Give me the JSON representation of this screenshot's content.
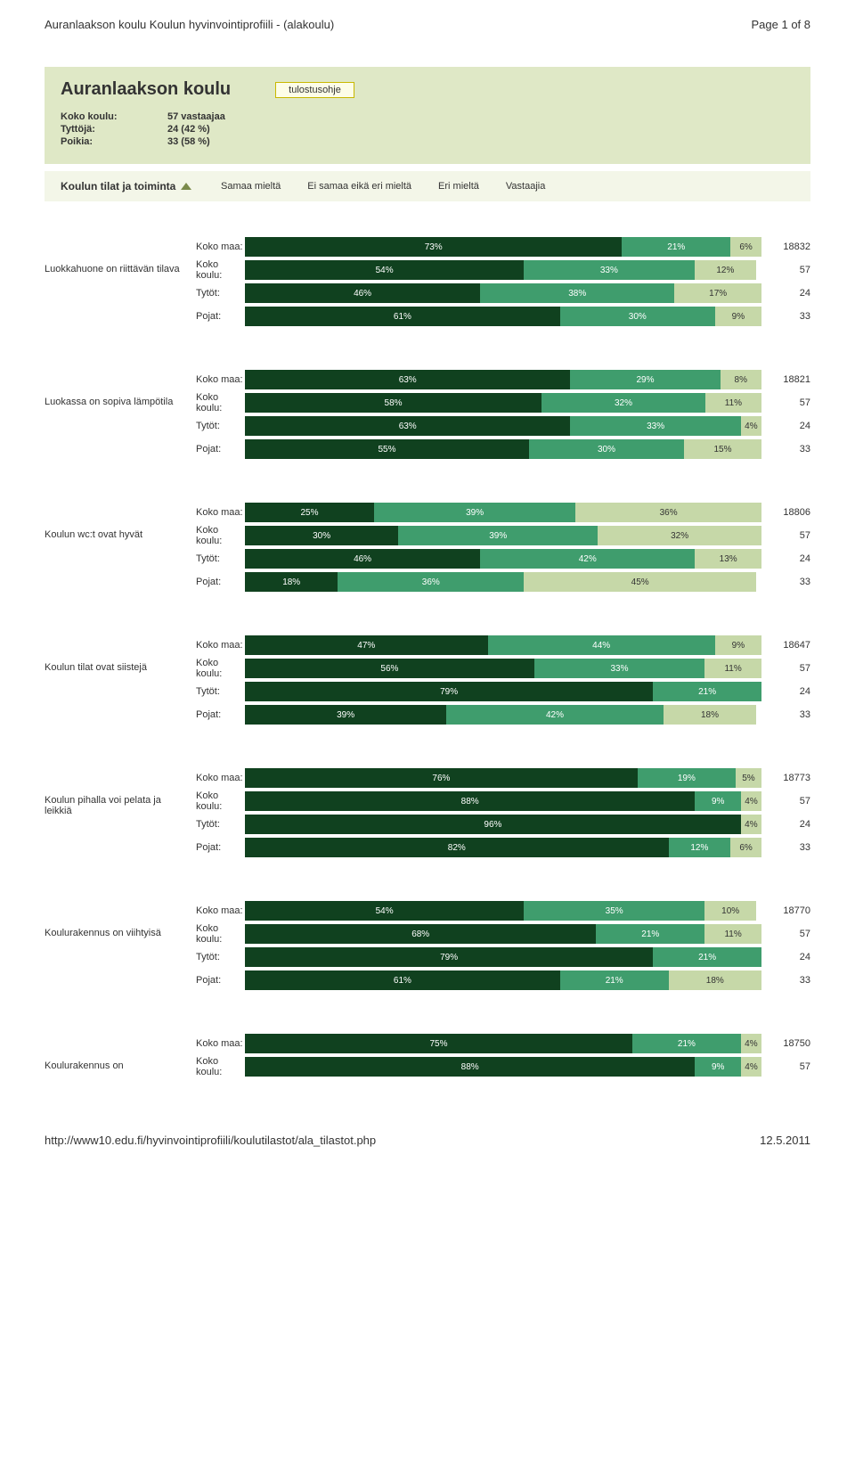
{
  "page_header_left": "Auranlaakson koulu Koulun hyvinvointiprofiili - (alakoulu)",
  "page_header_right": "Page 1 of 8",
  "footer_left": "http://www10.edu.fi/hyvinvointiprofiili/koulutilastot/ala_tilastot.php",
  "footer_right": "12.5.2011",
  "title": "Auranlaakson koulu",
  "tulostus_label": "tulostusohje",
  "stats": [
    {
      "k": "Koko koulu:",
      "v": "57 vastaajaa"
    },
    {
      "k": "Tyttöjä:",
      "v": "24 (42 %)"
    },
    {
      "k": "Poikia:",
      "v": "33 (58 %)"
    }
  ],
  "section_title": "Koulun tilat ja toiminta",
  "legend": [
    "Samaa mieltä",
    "Ei samaa eikä eri mieltä",
    "Eri mieltä",
    "Vastaajia"
  ],
  "colors": {
    "seg1": "#10411f",
    "seg2": "#3f9d6d",
    "seg3": "#c6d8a8",
    "seg3_text": "#333333"
  },
  "row_labels": [
    "Koko maa:",
    "Koko koulu:",
    "Tytöt:",
    "Pojat:"
  ],
  "questions": [
    {
      "label": "Luokkahuone on riittävän tilava",
      "rows": [
        {
          "v": [
            73,
            21,
            6
          ],
          "n": 18832
        },
        {
          "v": [
            54,
            33,
            12
          ],
          "n": 57
        },
        {
          "v": [
            46,
            38,
            17
          ],
          "n": 24
        },
        {
          "v": [
            61,
            30,
            9
          ],
          "n": 33
        }
      ]
    },
    {
      "label": "Luokassa on sopiva lämpötila",
      "rows": [
        {
          "v": [
            63,
            29,
            8
          ],
          "n": 18821
        },
        {
          "v": [
            58,
            32,
            11
          ],
          "n": 57
        },
        {
          "v": [
            63,
            33,
            4
          ],
          "n": 24
        },
        {
          "v": [
            55,
            30,
            15
          ],
          "n": 33
        }
      ]
    },
    {
      "label": "Koulun wc:t ovat hyvät",
      "rows": [
        {
          "v": [
            25,
            39,
            36
          ],
          "n": 18806
        },
        {
          "v": [
            30,
            39,
            32
          ],
          "n": 57
        },
        {
          "v": [
            46,
            42,
            13
          ],
          "n": 24
        },
        {
          "v": [
            18,
            36,
            45
          ],
          "n": 33
        }
      ]
    },
    {
      "label": "Koulun tilat ovat siistejä",
      "rows": [
        {
          "v": [
            47,
            44,
            9
          ],
          "n": 18647
        },
        {
          "v": [
            56,
            33,
            11
          ],
          "n": 57
        },
        {
          "v": [
            79,
            21,
            0
          ],
          "n": 24
        },
        {
          "v": [
            39,
            42,
            18
          ],
          "n": 33
        }
      ]
    },
    {
      "label": "Koulun pihalla voi pelata ja leikkiä",
      "rows": [
        {
          "v": [
            76,
            19,
            5
          ],
          "n": 18773
        },
        {
          "v": [
            88,
            9,
            4
          ],
          "n": 57
        },
        {
          "v": [
            96,
            0,
            4
          ],
          "n": 24
        },
        {
          "v": [
            82,
            12,
            6
          ],
          "n": 33
        }
      ]
    },
    {
      "label": "Koulurakennus on viihtyisä",
      "rows": [
        {
          "v": [
            54,
            35,
            10
          ],
          "n": 18770
        },
        {
          "v": [
            68,
            21,
            11
          ],
          "n": 57
        },
        {
          "v": [
            79,
            21,
            0
          ],
          "n": 24
        },
        {
          "v": [
            61,
            21,
            18
          ],
          "n": 33
        }
      ]
    },
    {
      "label": "Koulurakennus on",
      "partial": true,
      "rows": [
        {
          "v": [
            75,
            21,
            4
          ],
          "n": 18750
        },
        {
          "v": [
            88,
            9,
            4
          ],
          "n": 57
        }
      ]
    }
  ]
}
